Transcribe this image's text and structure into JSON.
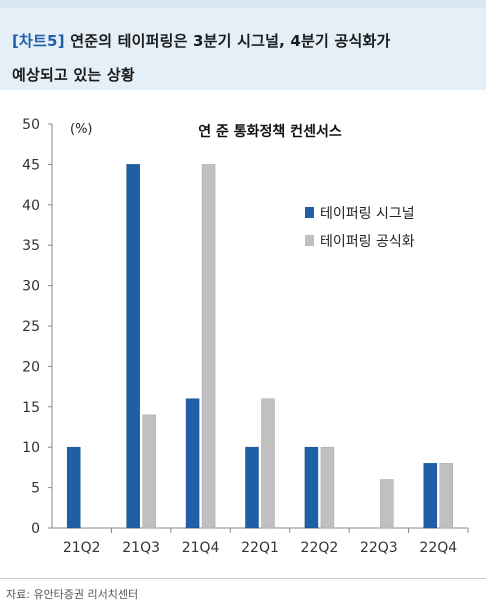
{
  "header": {
    "tag": "[차트5]",
    "title_line1": "연준의 테이퍼링은 3분기 시그널, 4분기 공식화가",
    "title_line2": "예상되고 있는 상황"
  },
  "source": "자료: 유안타증권 리서치센터",
  "colors": {
    "signal": "#1f5fa8",
    "formal": "#c0c0c0",
    "header_bg": "#e4eff7",
    "tag": "#1f5fa8"
  },
  "chart_data": {
    "type": "bar",
    "title": "연 준 통화정책 컨센서스",
    "unit_label": "(%)",
    "categories": [
      "21Q2",
      "21Q3",
      "21Q4",
      "22Q1",
      "22Q2",
      "22Q3",
      "22Q4"
    ],
    "series": [
      {
        "name": "테이퍼링 시그널",
        "values": [
          10,
          45,
          16,
          10,
          10,
          0,
          8
        ]
      },
      {
        "name": "테이퍼링 공식화",
        "values": [
          0,
          14,
          45,
          16,
          10,
          6,
          8
        ]
      }
    ],
    "y_ticks": [
      "0",
      "5",
      "10",
      "15",
      "20",
      "25",
      "30",
      "35",
      "40",
      "45",
      "50"
    ],
    "ylim": [
      0,
      50
    ],
    "grid": false,
    "legend_position": "right-middle"
  }
}
